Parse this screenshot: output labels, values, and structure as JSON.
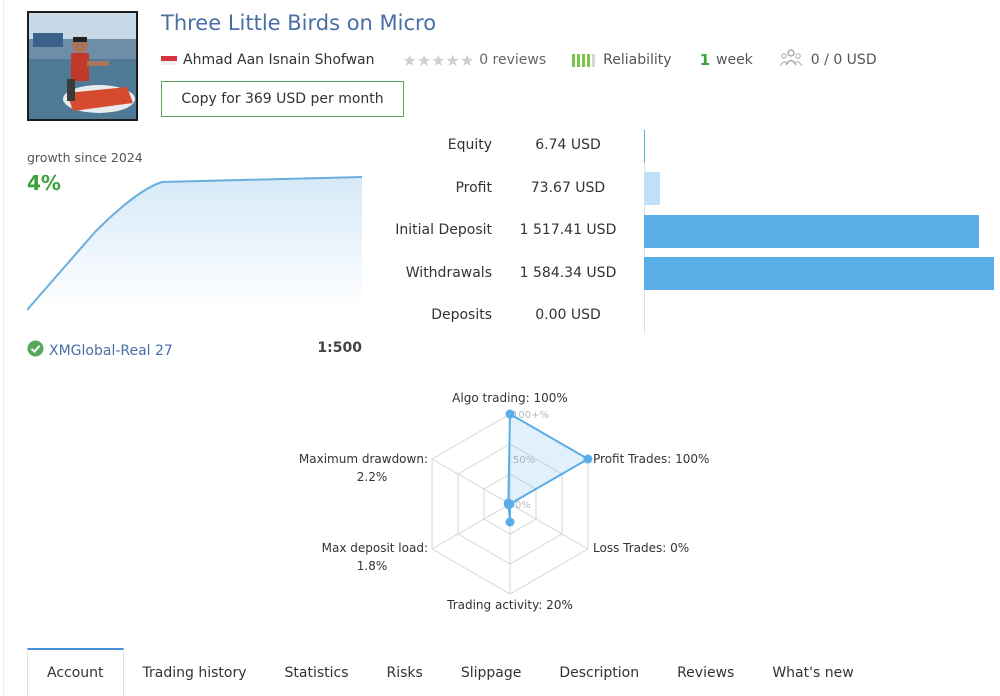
{
  "signal": {
    "title": "Three Little Birds on Micro",
    "author": "Ahmad Aan Isnain Shofwan",
    "stars": "★★★★★",
    "reviews": "0 reviews",
    "reliability_label": "Reliability",
    "reliability_level": 4,
    "age_value": "1",
    "age_unit": "week",
    "subscribers": "0 / 0 USD",
    "copy_label": "Copy for 369 USD per month"
  },
  "growth": {
    "label": "growth since 2024",
    "value": "4%"
  },
  "account": {
    "broker": "XMGlobal-Real 27",
    "leverage": "1:500"
  },
  "stats": [
    {
      "label": "Equity",
      "value": "6.74 USD",
      "amount": 6.74
    },
    {
      "label": "Profit",
      "value": "73.67 USD",
      "amount": 73.67
    },
    {
      "label": "Initial Deposit",
      "value": "1 517.41 USD",
      "amount": 1517.41
    },
    {
      "label": "Withdrawals",
      "value": "1 584.34 USD",
      "amount": 1584.34
    },
    {
      "label": "Deposits",
      "value": "0.00 USD",
      "amount": 0
    }
  ],
  "radar": {
    "scale_labels": [
      "100+%",
      "50%",
      "0%"
    ],
    "axes": [
      {
        "label": "Algo trading: 100%",
        "value": 100
      },
      {
        "label": "Profit Trades: 100%",
        "value": 100
      },
      {
        "label": "Loss Trades: 0%",
        "value": 0
      },
      {
        "label": "Trading activity: 20%",
        "value": 20
      },
      {
        "label": "Max deposit load:",
        "label2": "1.8%",
        "value": 1.8
      },
      {
        "label": "Maximum drawdown:",
        "label2": "2.2%",
        "value": 2.2
      }
    ]
  },
  "tabs": [
    "Account",
    "Trading history",
    "Statistics",
    "Risks",
    "Slippage",
    "Description",
    "Reviews",
    "What's new"
  ],
  "colors": {
    "accent_blue": "#4a6fa5",
    "positive_green": "#3ca03c",
    "bar_blue": "#5aaee8"
  },
  "icons": {
    "flag": "indonesia-flag-icon",
    "verified": "check-shield-icon",
    "subscribers": "people-icon",
    "reliability": "signal-bars-icon"
  }
}
